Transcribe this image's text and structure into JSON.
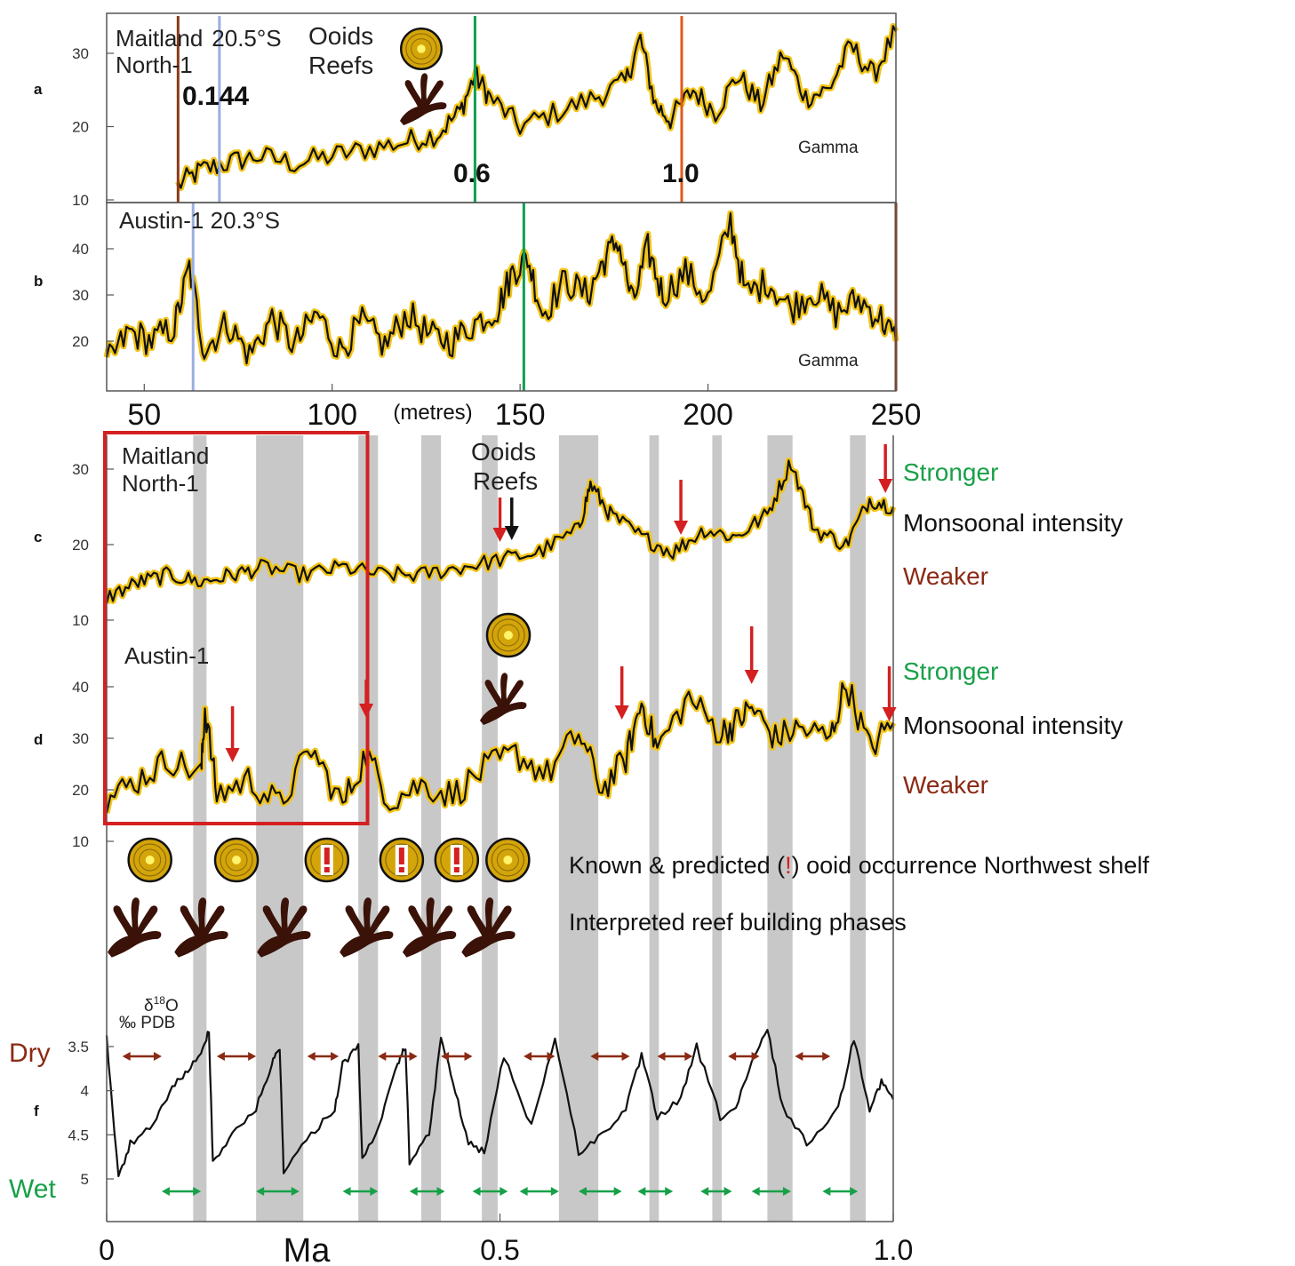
{
  "colors": {
    "signal": "#111111",
    "envelope": "#f2c418",
    "band": "#c8c8c8",
    "frame": "#555555",
    "red": "#d42020",
    "green": "#18a048",
    "dark_red": "#8b2a14",
    "brown": "#5a2010",
    "marker_brown": "#8b3a1a",
    "marker_blue": "#9aaee0",
    "marker_green": "#0aa050",
    "marker_orange": "#e05a1a",
    "ooid_fill": "#d4a50a",
    "ooid_core": "#fff36a"
  },
  "icons": {
    "ooid": "ooid-icon",
    "reef": "coral-reef-icon",
    "arrow": "red-down-arrow-icon"
  },
  "chart_data": [
    {
      "id": "a",
      "type": "line",
      "panel_label": "a",
      "title": "Maitland North-1  20.5°S",
      "series_label": "Gamma",
      "annotations": [
        "Ooids",
        "Reefs",
        "0.144",
        "0.6",
        "1.0"
      ],
      "xlim": [
        40,
        250
      ],
      "ylim": [
        10,
        35
      ],
      "yticks": [
        "10",
        "20",
        "30"
      ],
      "ytick_values": [
        10,
        20,
        30
      ],
      "markers": [
        {
          "x": 59,
          "color": "marker_brown",
          "label": ""
        },
        {
          "x": 70,
          "color": "marker_blue",
          "label": "0.144"
        },
        {
          "x": 138,
          "color": "marker_green",
          "label": "0.6"
        },
        {
          "x": 193,
          "color": "marker_orange",
          "label": "1.0"
        }
      ],
      "anchors": [
        [
          59,
          12
        ],
        [
          65,
          14
        ],
        [
          72,
          15
        ],
        [
          80,
          16
        ],
        [
          90,
          15
        ],
        [
          100,
          16
        ],
        [
          110,
          17
        ],
        [
          120,
          18
        ],
        [
          128,
          19
        ],
        [
          134,
          22
        ],
        [
          138,
          27
        ],
        [
          142,
          24
        ],
        [
          150,
          20
        ],
        [
          160,
          22
        ],
        [
          170,
          24
        ],
        [
          178,
          26
        ],
        [
          182,
          32
        ],
        [
          186,
          23
        ],
        [
          190,
          21
        ],
        [
          196,
          25
        ],
        [
          202,
          22
        ],
        [
          208,
          27
        ],
        [
          214,
          23
        ],
        [
          220,
          30
        ],
        [
          226,
          24
        ],
        [
          232,
          25
        ],
        [
          238,
          31
        ],
        [
          244,
          27
        ],
        [
          250,
          33
        ]
      ]
    },
    {
      "id": "b",
      "type": "line",
      "panel_label": "b",
      "title": "Austin-1  20.3°S",
      "series_label": "Gamma",
      "xlim": [
        40,
        250
      ],
      "ylim": [
        10,
        48
      ],
      "yticks": [
        "20",
        "30",
        "40"
      ],
      "ytick_values": [
        20,
        30,
        40
      ],
      "xticks": [
        "50",
        "100",
        "150",
        "200",
        "250"
      ],
      "xtick_values": [
        50,
        100,
        150,
        200,
        250
      ],
      "xlabel": "(metres)",
      "markers": [
        {
          "x": 63,
          "color": "marker_blue",
          "label": ""
        },
        {
          "x": 151,
          "color": "marker_green",
          "label": ""
        },
        {
          "x": 250,
          "color": "marker_brown",
          "label": ""
        }
      ],
      "anchors": [
        [
          40,
          15
        ],
        [
          46,
          22
        ],
        [
          52,
          20
        ],
        [
          58,
          23
        ],
        [
          62,
          36
        ],
        [
          66,
          18
        ],
        [
          72,
          24
        ],
        [
          78,
          17
        ],
        [
          84,
          25
        ],
        [
          90,
          19
        ],
        [
          96,
          26
        ],
        [
          102,
          18
        ],
        [
          108,
          24
        ],
        [
          114,
          19
        ],
        [
          120,
          26
        ],
        [
          126,
          21
        ],
        [
          132,
          20
        ],
        [
          138,
          24
        ],
        [
          144,
          27
        ],
        [
          148,
          35
        ],
        [
          152,
          38
        ],
        [
          156,
          26
        ],
        [
          162,
          33
        ],
        [
          168,
          30
        ],
        [
          172,
          37
        ],
        [
          176,
          42
        ],
        [
          180,
          28
        ],
        [
          184,
          40
        ],
        [
          188,
          30
        ],
        [
          194,
          35
        ],
        [
          200,
          29
        ],
        [
          206,
          46
        ],
        [
          210,
          30
        ],
        [
          216,
          33
        ],
        [
          222,
          27
        ],
        [
          228,
          31
        ],
        [
          234,
          26
        ],
        [
          240,
          29
        ],
        [
          246,
          25
        ],
        [
          250,
          20
        ]
      ]
    },
    {
      "id": "c",
      "type": "line",
      "panel_label": "c",
      "title": "Maitland North-1",
      "annotations": [
        "Ooids",
        "Reefs"
      ],
      "xlim": [
        0,
        1.0
      ],
      "ylim": [
        10,
        35
      ],
      "yticks": [
        "10",
        "20",
        "30"
      ],
      "ytick_values": [
        10,
        20,
        30
      ],
      "side_labels": {
        "top": "Stronger",
        "middle": "Monsoonal intensity",
        "bottom": "Weaker"
      },
      "arrows_x": [
        0.5,
        0.73,
        0.99
      ],
      "black_arrow_x": [
        0.515
      ],
      "anchors": [
        [
          0,
          13
        ],
        [
          0.04,
          15
        ],
        [
          0.08,
          16
        ],
        [
          0.12,
          15
        ],
        [
          0.16,
          16
        ],
        [
          0.2,
          17
        ],
        [
          0.25,
          16
        ],
        [
          0.3,
          17
        ],
        [
          0.35,
          16
        ],
        [
          0.4,
          16
        ],
        [
          0.45,
          17
        ],
        [
          0.5,
          18
        ],
        [
          0.55,
          19
        ],
        [
          0.6,
          22
        ],
        [
          0.615,
          28
        ],
        [
          0.64,
          24
        ],
        [
          0.68,
          21
        ],
        [
          0.72,
          19
        ],
        [
          0.76,
          22
        ],
        [
          0.8,
          21
        ],
        [
          0.84,
          24
        ],
        [
          0.87,
          31
        ],
        [
          0.9,
          22
        ],
        [
          0.94,
          20
        ],
        [
          0.97,
          26
        ],
        [
          1.0,
          25
        ]
      ]
    },
    {
      "id": "d",
      "type": "line",
      "panel_label": "d",
      "title": "Austin-1",
      "xlim": [
        0,
        1.0
      ],
      "ylim": [
        10,
        48
      ],
      "yticks": [
        "10",
        "20",
        "30",
        "40"
      ],
      "ytick_values": [
        10,
        20,
        30,
        40
      ],
      "side_labels": {
        "top": "Stronger",
        "middle": "Monsoonal intensity",
        "bottom": "Weaker"
      },
      "arrows_x": [
        0.16,
        0.33,
        0.655,
        0.82,
        0.995
      ],
      "anchors": [
        [
          0,
          18
        ],
        [
          0.04,
          22
        ],
        [
          0.08,
          26
        ],
        [
          0.12,
          23
        ],
        [
          0.125,
          36
        ],
        [
          0.14,
          19
        ],
        [
          0.18,
          22
        ],
        [
          0.22,
          17
        ],
        [
          0.26,
          28
        ],
        [
          0.3,
          17
        ],
        [
          0.33,
          27
        ],
        [
          0.36,
          18
        ],
        [
          0.4,
          21
        ],
        [
          0.44,
          19
        ],
        [
          0.48,
          24
        ],
        [
          0.52,
          27
        ],
        [
          0.56,
          23
        ],
        [
          0.6,
          31
        ],
        [
          0.63,
          20
        ],
        [
          0.66,
          26
        ],
        [
          0.68,
          37
        ],
        [
          0.7,
          28
        ],
        [
          0.74,
          38
        ],
        [
          0.78,
          31
        ],
        [
          0.8,
          33
        ],
        [
          0.82,
          36
        ],
        [
          0.85,
          30
        ],
        [
          0.88,
          32
        ],
        [
          0.92,
          30
        ],
        [
          0.94,
          41
        ],
        [
          0.97,
          28
        ],
        [
          1.0,
          33
        ]
      ]
    },
    {
      "id": "f",
      "type": "line",
      "panel_label": "f",
      "ylabel": "δ18O ‰ PDB",
      "ylabel_top": "δ",
      "ylabel_sup": "18",
      "ylabel_o": "O",
      "ylabel_unit": "‰ PDB",
      "xlim": [
        0,
        1.0
      ],
      "ylim": [
        5.2,
        3.1
      ],
      "yticks": [
        "3.5",
        "4",
        "4.5",
        "5"
      ],
      "ytick_values": [
        3.5,
        4,
        4.5,
        5
      ],
      "xticks": [
        "0",
        "0.5",
        "1.0"
      ],
      "xtick_values": [
        0,
        0.5,
        1.0
      ],
      "xlabel": "Ma",
      "dry_label": "Dry",
      "wet_label": "Wet",
      "dry_arrows": [
        [
          0.02,
          0.07
        ],
        [
          0.14,
          0.19
        ],
        [
          0.255,
          0.295
        ],
        [
          0.345,
          0.395
        ],
        [
          0.425,
          0.465
        ],
        [
          0.53,
          0.57
        ],
        [
          0.615,
          0.665
        ],
        [
          0.7,
          0.745
        ],
        [
          0.79,
          0.83
        ],
        [
          0.875,
          0.92
        ]
      ],
      "wet_arrows": [
        [
          0.07,
          0.12
        ],
        [
          0.19,
          0.245
        ],
        [
          0.3,
          0.345
        ],
        [
          0.385,
          0.43
        ],
        [
          0.465,
          0.51
        ],
        [
          0.525,
          0.575
        ],
        [
          0.6,
          0.655
        ],
        [
          0.675,
          0.72
        ],
        [
          0.755,
          0.795
        ],
        [
          0.82,
          0.87
        ],
        [
          0.91,
          0.955
        ]
      ],
      "anchors": [
        [
          0,
          3.4
        ],
        [
          0.015,
          5.0
        ],
        [
          0.03,
          4.6
        ],
        [
          0.06,
          4.4
        ],
        [
          0.08,
          4.0
        ],
        [
          0.1,
          3.8
        ],
        [
          0.12,
          3.6
        ],
        [
          0.13,
          3.3
        ],
        [
          0.135,
          4.8
        ],
        [
          0.16,
          4.5
        ],
        [
          0.19,
          4.2
        ],
        [
          0.21,
          3.7
        ],
        [
          0.22,
          3.5
        ],
        [
          0.225,
          4.9
        ],
        [
          0.26,
          4.5
        ],
        [
          0.29,
          4.2
        ],
        [
          0.3,
          3.7
        ],
        [
          0.32,
          3.5
        ],
        [
          0.325,
          4.8
        ],
        [
          0.35,
          4.3
        ],
        [
          0.37,
          3.7
        ],
        [
          0.38,
          3.5
        ],
        [
          0.385,
          4.8
        ],
        [
          0.41,
          4.5
        ],
        [
          0.425,
          3.4
        ],
        [
          0.44,
          3.9
        ],
        [
          0.46,
          4.6
        ],
        [
          0.48,
          4.7
        ],
        [
          0.505,
          3.6
        ],
        [
          0.54,
          4.4
        ],
        [
          0.57,
          3.4
        ],
        [
          0.6,
          4.7
        ],
        [
          0.63,
          4.5
        ],
        [
          0.66,
          4.2
        ],
        [
          0.68,
          3.6
        ],
        [
          0.7,
          4.3
        ],
        [
          0.73,
          4.1
        ],
        [
          0.75,
          3.5
        ],
        [
          0.78,
          4.3
        ],
        [
          0.8,
          4.2
        ],
        [
          0.82,
          3.7
        ],
        [
          0.84,
          3.3
        ],
        [
          0.86,
          4.2
        ],
        [
          0.89,
          4.6
        ],
        [
          0.93,
          4.2
        ],
        [
          0.95,
          3.4
        ],
        [
          0.97,
          4.2
        ],
        [
          0.985,
          3.9
        ],
        [
          1.0,
          4.1
        ]
      ]
    }
  ],
  "shaded_bands_ma": [
    [
      0.11,
      0.127
    ],
    [
      0.19,
      0.25
    ],
    [
      0.32,
      0.345
    ],
    [
      0.4,
      0.425
    ],
    [
      0.477,
      0.497
    ],
    [
      0.575,
      0.625
    ],
    [
      0.69,
      0.702
    ],
    [
      0.77,
      0.782
    ],
    [
      0.84,
      0.872
    ],
    [
      0.945,
      0.965
    ]
  ],
  "highlight_box": {
    "x0": 0,
    "x1": 0.3,
    "note": "red box over panels c and d"
  },
  "legend_rows": {
    "ooid_prefix": "Known & predicted (",
    "ooid_mark": "!",
    "ooid_suffix": ") ooid occurrence Northwest shelf",
    "reef_label": "Interpreted reef building phases"
  },
  "ooid_markers": [
    {
      "x": 0.055,
      "predicted": false
    },
    {
      "x": 0.165,
      "predicted": false
    },
    {
      "x": 0.28,
      "predicted": true
    },
    {
      "x": 0.375,
      "predicted": true
    },
    {
      "x": 0.445,
      "predicted": true
    },
    {
      "x": 0.51,
      "predicted": false
    }
  ],
  "reef_markers_x": [
    0.035,
    0.12,
    0.225,
    0.33,
    0.41,
    0.485
  ]
}
